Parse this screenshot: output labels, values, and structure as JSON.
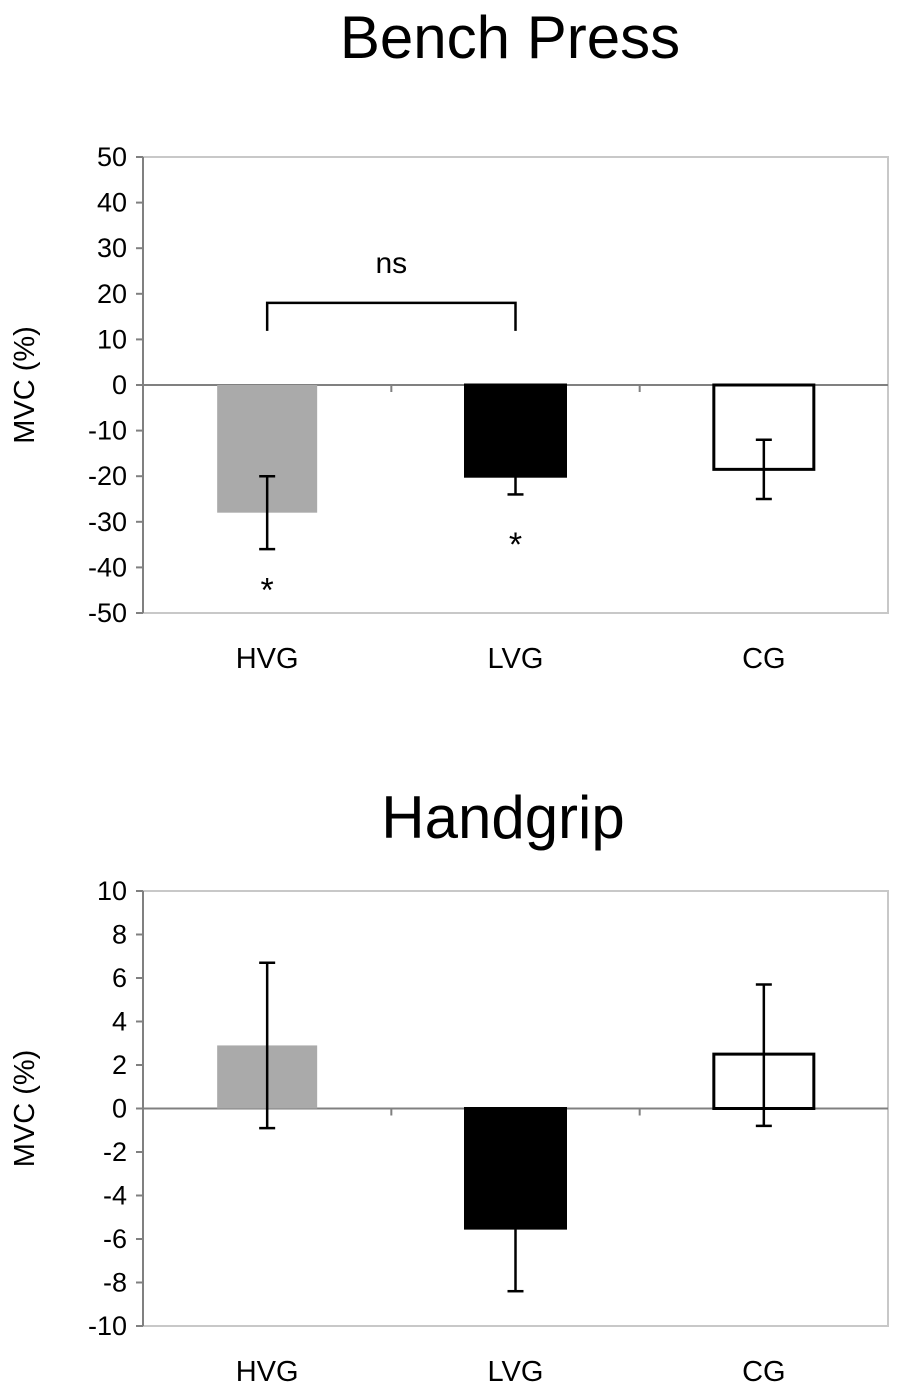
{
  "chart_data": [
    {
      "type": "bar",
      "title": "Bench Press",
      "xlabel": "",
      "ylabel": "MVC (%)",
      "ylim": [
        -50,
        50
      ],
      "yticks": [
        50,
        40,
        30,
        20,
        10,
        0,
        -10,
        -20,
        -30,
        -40,
        -50
      ],
      "grid": false,
      "categories": [
        "HVG",
        "LVG",
        "CG"
      ],
      "values": [
        -28,
        -20,
        -18.5
      ],
      "error_low": [
        -36,
        -24,
        -25
      ],
      "error_high": [
        -20,
        -20,
        -12
      ],
      "fills": [
        "#aaaaaa",
        "#000000",
        "#ffffff"
      ],
      "annotations": {
        "bracket": {
          "from": "HVG",
          "to": "LVG",
          "y": 18,
          "label": "ns"
        },
        "stars": [
          {
            "category": "HVG",
            "y": -44,
            "label": "*"
          },
          {
            "category": "LVG",
            "y": -34,
            "label": "*"
          }
        ]
      }
    },
    {
      "type": "bar",
      "title": "Handgrip",
      "xlabel": "",
      "ylabel": "MVC (%)",
      "ylim": [
        -10,
        10
      ],
      "yticks": [
        10,
        8,
        6,
        4,
        2,
        0,
        -2,
        -4,
        -6,
        -8,
        -10
      ],
      "grid": false,
      "categories": [
        "HVG",
        "LVG",
        "CG"
      ],
      "values": [
        2.9,
        -5.5,
        2.5
      ],
      "error_low": [
        -0.9,
        -8.4,
        -0.8
      ],
      "error_high": [
        6.7,
        -5.5,
        5.7
      ],
      "fills": [
        "#aaaaaa",
        "#000000",
        "#ffffff"
      ]
    }
  ]
}
